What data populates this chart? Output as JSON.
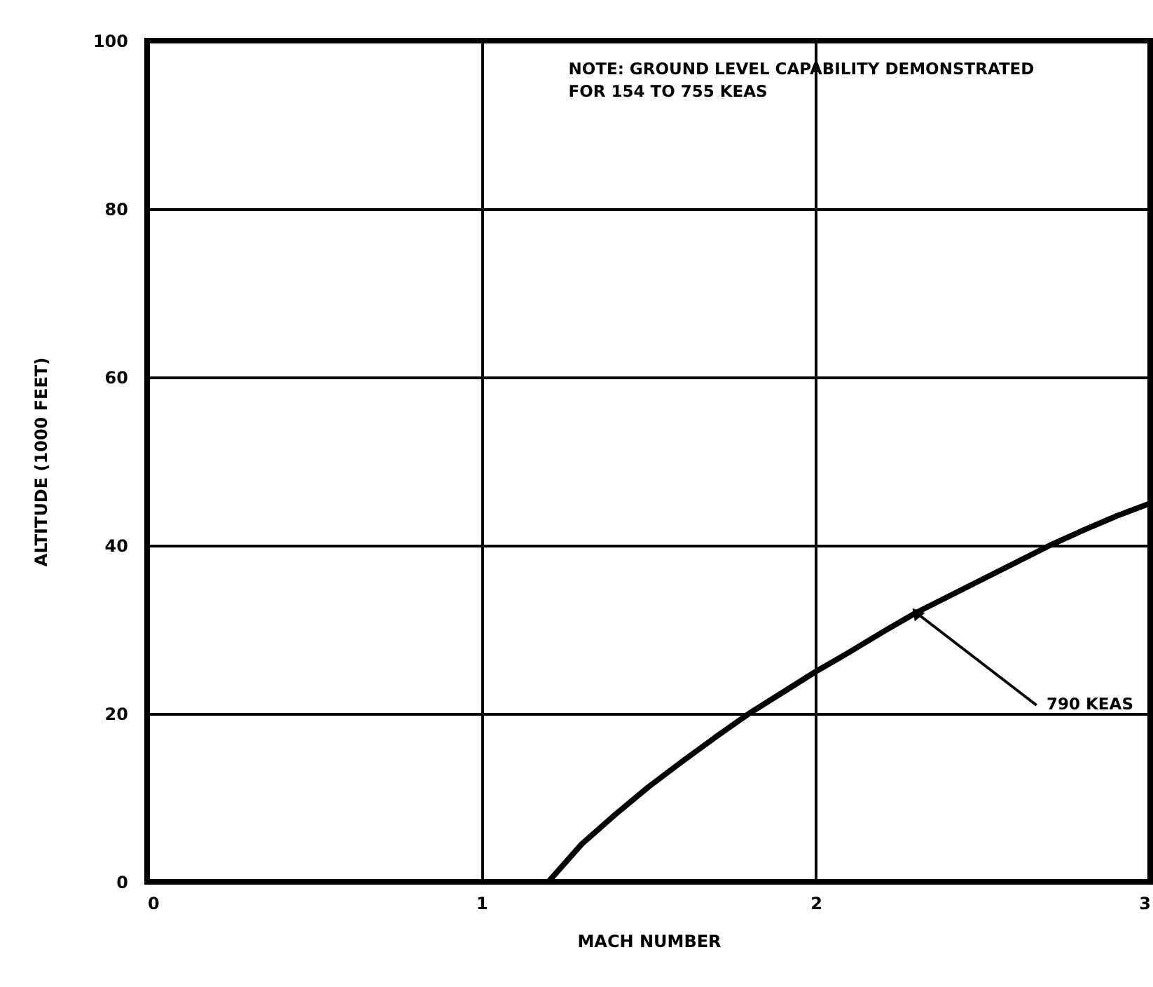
{
  "chart_data": {
    "type": "line",
    "xlabel": "MACH NUMBER",
    "ylabel": "ALTITUDE (1000 FEET)",
    "x": [
      1.2,
      1.3,
      1.4,
      1.5,
      1.6,
      1.7,
      1.8,
      1.9,
      2.0,
      2.1,
      2.2,
      2.3,
      2.4,
      2.5,
      2.6,
      2.7,
      2.8,
      2.9,
      3.0
    ],
    "series": [
      {
        "color": "#000000",
        "values": [
          0,
          4.5,
          8,
          11.3,
          14.3,
          17.2,
          20,
          22.5,
          25,
          27.3,
          29.7,
          32,
          34,
          36,
          38,
          40,
          41.8,
          43.5,
          45
        ]
      }
    ],
    "xlim": [
      0,
      3
    ],
    "xticks": [
      0,
      1,
      2,
      3
    ],
    "ylim": [
      0,
      100
    ],
    "yticks": [
      0,
      20,
      40,
      60,
      80,
      100
    ],
    "grid": true,
    "legend": false,
    "marker": "none",
    "line_style": "solid",
    "annotations": [
      "NOTE:  GROUND LEVEL CAPABILITY DEMONSTRATED\n           FOR 154 TO 755 KEAS",
      {
        "text": "790 KEAS",
        "x": 2.3,
        "y": 32
      }
    ]
  }
}
